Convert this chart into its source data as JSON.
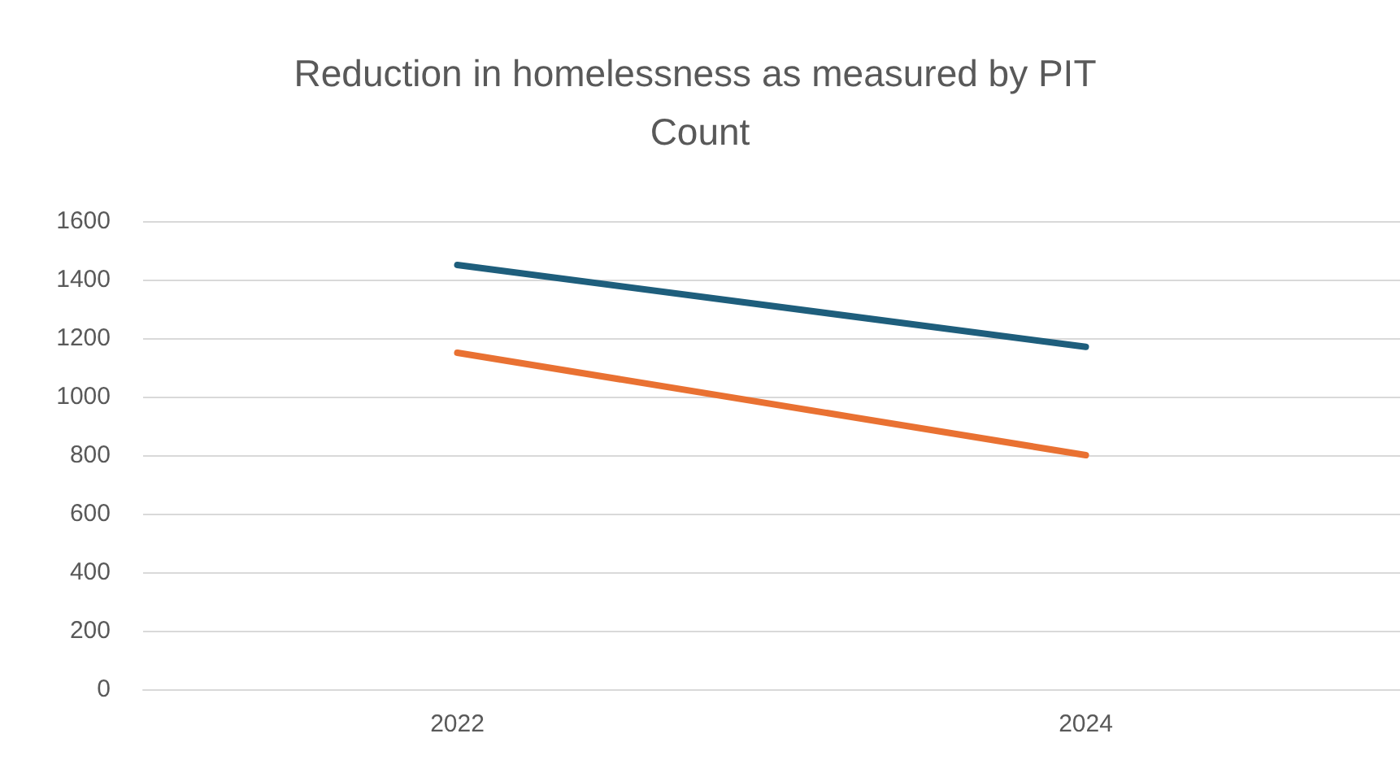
{
  "chart_data": {
    "type": "line",
    "title": "Reduction in homelessness as measured by PIT Count",
    "categories": [
      "2022",
      "2024"
    ],
    "series": [
      {
        "color": "#1e5e7c",
        "values": [
          1450,
          1170
        ]
      },
      {
        "color": "#e97132",
        "values": [
          1150,
          800
        ]
      }
    ],
    "ylim": [
      0,
      1600
    ],
    "yticks": [
      0,
      200,
      400,
      600,
      800,
      1000,
      1200,
      1400,
      1600
    ],
    "grid": "y",
    "marker": "none",
    "line_style": "solid"
  }
}
